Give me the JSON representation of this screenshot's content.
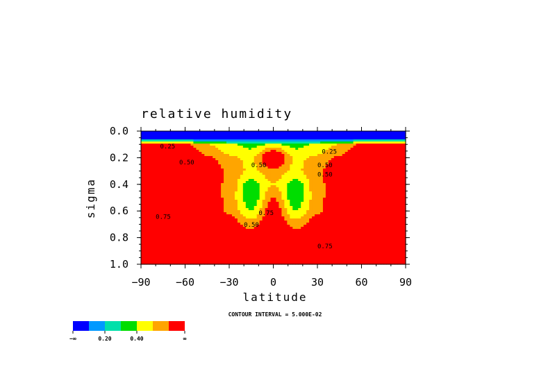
{
  "chart_data": {
    "type": "heatmap",
    "title": "relative humidity",
    "xlabel": "latitude",
    "ylabel": "sigma",
    "xlim": [
      -90,
      90
    ],
    "ylim": [
      0.0,
      1.0
    ],
    "x_ticks": [
      "−90",
      "−60",
      "−30",
      "0",
      "30",
      "60",
      "90"
    ],
    "y_ticks": [
      "0.0",
      "0.2",
      "0.4",
      "0.6",
      "0.8",
      "1.0"
    ],
    "footnote": "CONTOUR INTERVAL = 5.000E-02",
    "contour_labels": [
      "0.25",
      "0.50",
      "0.50",
      "0.75",
      "0.75",
      "0.50",
      "0.25",
      "0.50",
      "0.50",
      "0.75"
    ],
    "colorbar": {
      "labels": [
        "−∞",
        "0.20",
        "0.40",
        "∞"
      ],
      "colors": [
        "#0000ff",
        "#0099ff",
        "#00e0aa",
        "#00dd00",
        "#ffff00",
        "#ffa500",
        "#ff0000"
      ]
    },
    "field": {
      "lat_step": 15,
      "lat": [
        -90,
        -75,
        -60,
        -45,
        -30,
        -15,
        0,
        15,
        30,
        45,
        60,
        75,
        90
      ],
      "sigma": [
        0.1,
        0.2,
        0.3,
        0.4,
        0.5,
        0.6,
        0.7,
        0.8,
        0.9,
        1.0
      ],
      "values": [
        [
          0.7,
          0.72,
          0.62,
          0.5,
          0.42,
          0.36,
          0.42,
          0.36,
          0.42,
          0.5,
          0.62,
          0.72,
          0.7
        ],
        [
          0.85,
          0.85,
          0.78,
          0.62,
          0.52,
          0.48,
          0.8,
          0.48,
          0.52,
          0.62,
          0.78,
          0.85,
          0.85
        ],
        [
          0.82,
          0.85,
          0.82,
          0.75,
          0.58,
          0.48,
          0.56,
          0.48,
          0.58,
          0.75,
          0.82,
          0.85,
          0.82
        ],
        [
          0.8,
          0.82,
          0.82,
          0.76,
          0.55,
          0.35,
          0.5,
          0.35,
          0.55,
          0.76,
          0.82,
          0.82,
          0.8
        ],
        [
          0.78,
          0.8,
          0.82,
          0.76,
          0.55,
          0.32,
          0.6,
          0.32,
          0.55,
          0.76,
          0.82,
          0.8,
          0.78
        ],
        [
          0.78,
          0.8,
          0.82,
          0.76,
          0.58,
          0.4,
          0.68,
          0.4,
          0.58,
          0.76,
          0.82,
          0.8,
          0.78
        ],
        [
          0.8,
          0.82,
          0.82,
          0.78,
          0.66,
          0.56,
          0.72,
          0.56,
          0.66,
          0.78,
          0.82,
          0.82,
          0.8
        ],
        [
          0.82,
          0.82,
          0.82,
          0.8,
          0.74,
          0.66,
          0.78,
          0.66,
          0.74,
          0.8,
          0.82,
          0.82,
          0.82
        ],
        [
          0.84,
          0.84,
          0.84,
          0.82,
          0.8,
          0.77,
          0.84,
          0.77,
          0.8,
          0.82,
          0.84,
          0.84,
          0.84
        ],
        [
          0.86,
          0.86,
          0.86,
          0.86,
          0.84,
          0.82,
          0.86,
          0.82,
          0.84,
          0.86,
          0.86,
          0.86,
          0.86
        ]
      ],
      "top_values": [
        0.05,
        0.05,
        0.05,
        0.05,
        0.05,
        0.05,
        0.05,
        0.05,
        0.05,
        0.05,
        0.05,
        0.05,
        0.05
      ]
    }
  }
}
